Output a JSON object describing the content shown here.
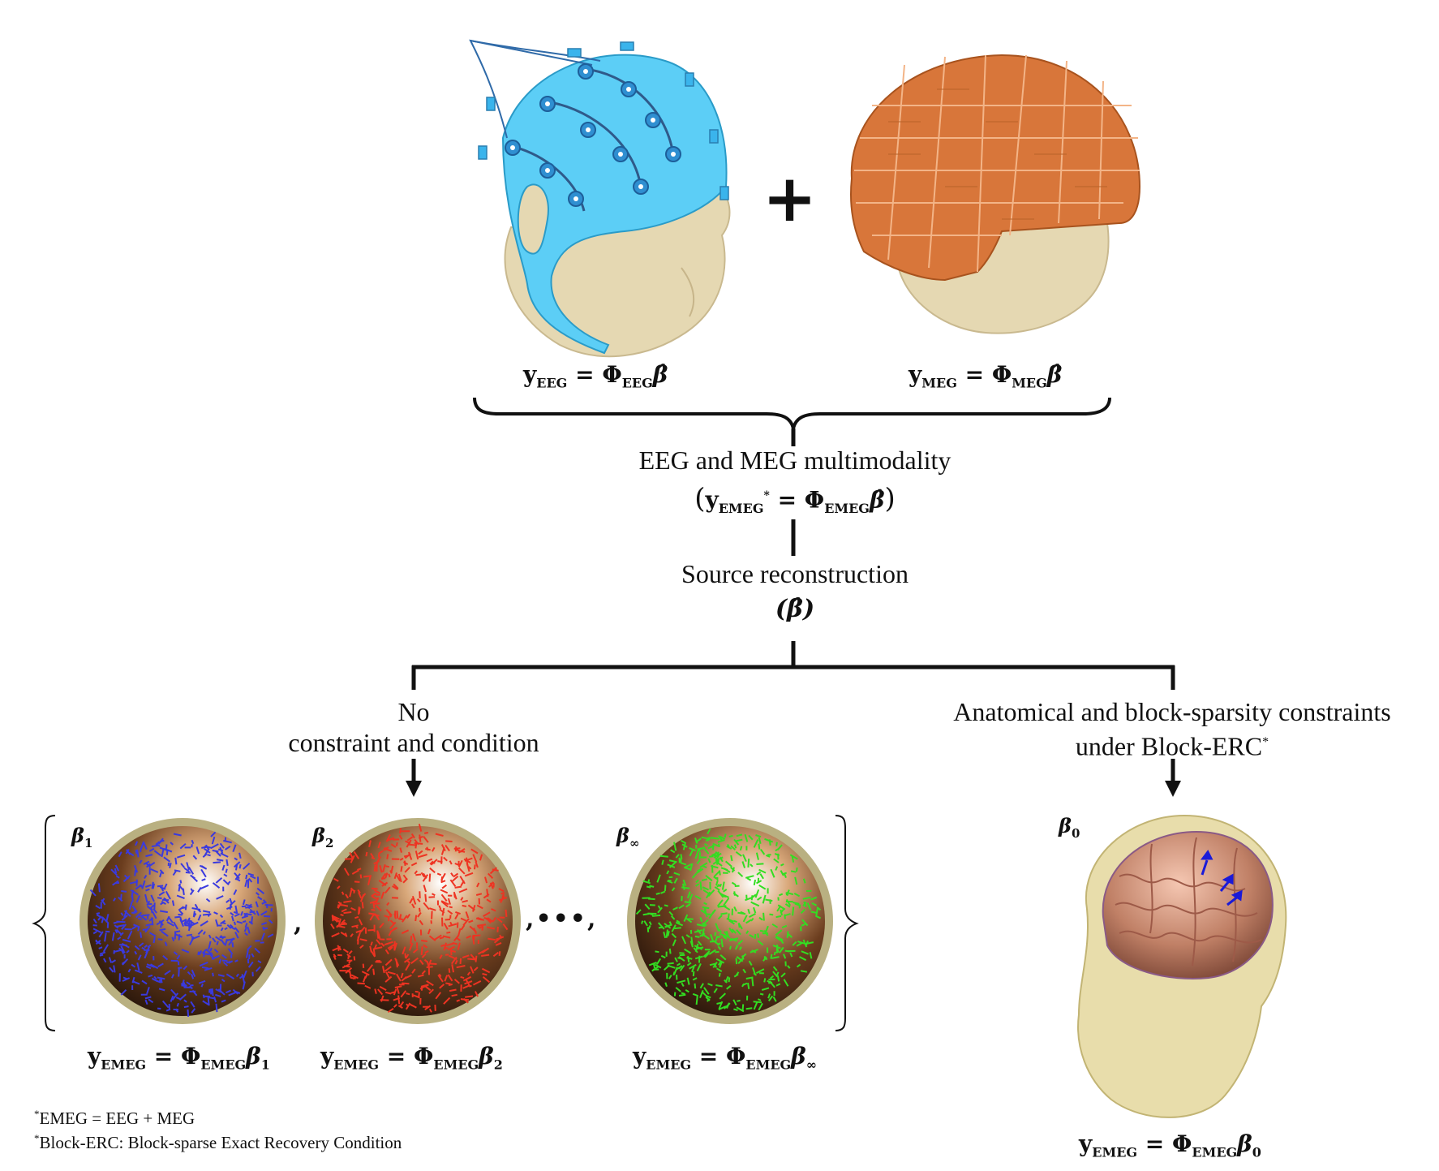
{
  "top": {
    "eeg_eq": {
      "y": "y",
      "y_sub": "EEG",
      "phi": "Φ",
      "phi_sub": "EEG",
      "beta": "β̂"
    },
    "meg_eq": {
      "y": "y",
      "y_sub": "MEG",
      "phi": "Φ",
      "phi_sub": "MEG",
      "beta": "β̂"
    },
    "plus": "+"
  },
  "multimodality": {
    "line1": "EEG and MEG multimodality",
    "eq": {
      "open": "(",
      "y": "y",
      "y_sub": "EMEG",
      "star": "*",
      "phi": "Φ",
      "phi_sub": "EMEG",
      "beta": "β̂",
      "close": ")"
    }
  },
  "reconstruction": {
    "line1": "Source reconstruction",
    "eq": "(β̂)"
  },
  "left_branch": {
    "line1": "No",
    "line2": "constraint and condition"
  },
  "right_branch": {
    "line1": "Anatomical and block-sparsity constraints",
    "line2": "under Block-ERC",
    "star": "*"
  },
  "spheres": [
    {
      "label": "β",
      "label_sub": "1",
      "color": "#3a3adf",
      "eq_phi_sub": "EMEG",
      "eq_beta_sub": "1"
    },
    {
      "label": "β",
      "label_sub": "2",
      "color": "#ee3322",
      "eq_phi_sub": "EMEG",
      "eq_beta_sub": "2"
    },
    {
      "label": "β",
      "label_sub": "∞",
      "color": "#33dd22",
      "eq_phi_sub": "EMEG",
      "eq_beta_sub": "∞"
    }
  ],
  "separators": {
    "comma": ",",
    "dots": ",•••,"
  },
  "brain": {
    "label": "β",
    "label_sub": "0",
    "eq_beta_sub": "0"
  },
  "eq_common": {
    "y": "y",
    "y_sub": "EMEG",
    "equals": "=",
    "phi": "Φ",
    "phi_sub": "EMEG",
    "beta": "β"
  },
  "footnotes": {
    "star": "*",
    "f1": "EMEG = EEG + MEG",
    "f2": "Block-ERC: Block-sparse Exact Recovery Condition"
  }
}
